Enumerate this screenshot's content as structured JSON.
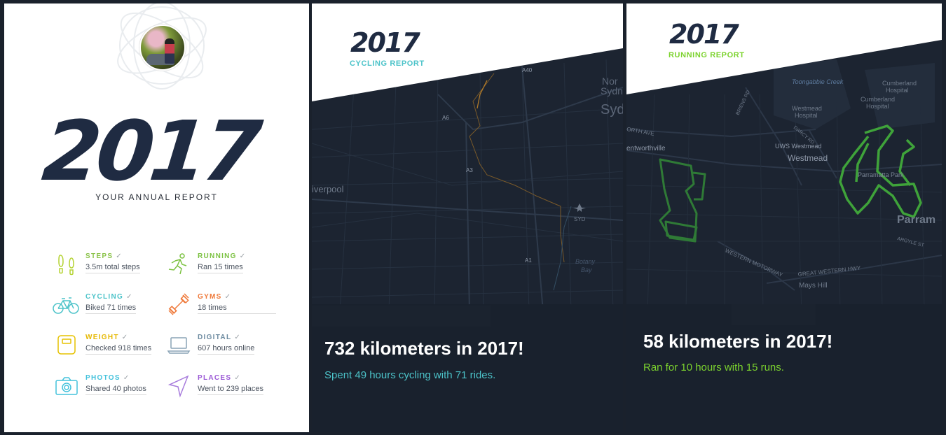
{
  "annual": {
    "year": "2017",
    "subtitle": "YOUR ANNUAL REPORT",
    "stats": [
      {
        "label": "STEPS",
        "value": "3.5m total steps",
        "color": "#8bc34a",
        "icon": "footprints-icon"
      },
      {
        "label": "RUNNING",
        "value": "Ran 15 times",
        "color": "#7cc242",
        "icon": "runner-icon"
      },
      {
        "label": "CYCLING",
        "value": "Biked 71 times",
        "color": "#4cc3c9",
        "icon": "bicycle-icon"
      },
      {
        "label": "GYMS",
        "value": "18 times",
        "color": "#ef7a3b",
        "icon": "dumbbell-icon"
      },
      {
        "label": "WEIGHT",
        "value": "Checked 918 times",
        "color": "#e6b800",
        "icon": "scale-icon"
      },
      {
        "label": "DIGITAL",
        "value": "607 hours online",
        "color": "#6c8aa0",
        "icon": "laptop-icon"
      },
      {
        "label": "PHOTOS",
        "value": "Shared 40 photos",
        "color": "#44c2dc",
        "icon": "camera-icon"
      },
      {
        "label": "PLACES",
        "value": "Went to 239 places",
        "color": "#9b59d6",
        "icon": "location-arrow-icon"
      }
    ],
    "check": "✓"
  },
  "cycling": {
    "year": "2017",
    "report": "CYCLING REPORT",
    "headline": "732 kilometers in 2017!",
    "summary": "Spent 49 hours cycling with 71 rides.",
    "accent": "#4cc3c9",
    "map_labels": {
      "a40": "A40",
      "a6": "A6",
      "a3": "A3",
      "a1": "A1",
      "north": "Nor",
      "sydn": "Sydn",
      "syd_big": "Syd",
      "liverpool": "iverpool",
      "syd_airport": "SYD",
      "botany": "Botany",
      "bay": "Bay"
    }
  },
  "running": {
    "year": "2017",
    "report": "RUNNING REPORT",
    "headline": "58 kilometers in 2017!",
    "summary": "Ran for 10 hours with 15 runs.",
    "accent": "#7cd32e",
    "map_labels": {
      "creek": "Toongabbie Creek",
      "cumberland1": "Cumberland",
      "hospital1": "Hospital",
      "cumberland2": "Cumberland",
      "hospital2": "Hospital",
      "westmead_h": "Westmead",
      "hospital3": "Hospital",
      "uws": "UWS Westmead",
      "westmead": "Westmead",
      "wentworthville": "entworthville",
      "parramatta_park": "Parramatta Park",
      "parram": "Parram",
      "western_mwy": "WESTERN MOTORWAY",
      "great_western": "GREAT WESTERN HWY",
      "mays_hill": "Mays Hill",
      "argyle": "ARGYLE ST",
      "briens": "BRIENS RD",
      "darcy": "DARCY RD",
      "north_ave": "ORTH AVE"
    }
  }
}
